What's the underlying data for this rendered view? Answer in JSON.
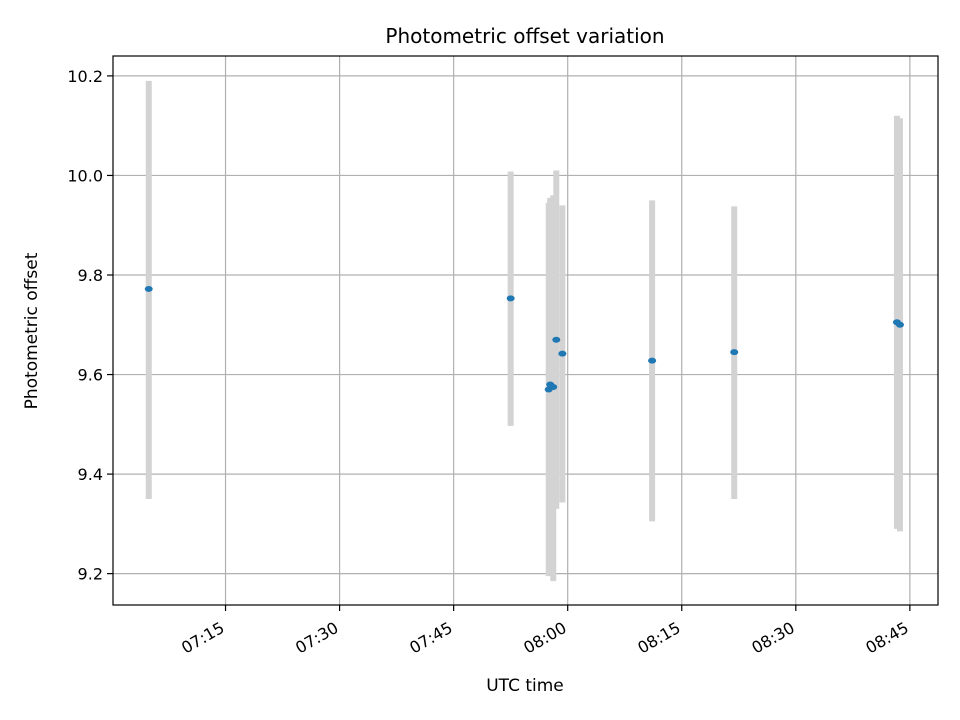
{
  "chart_data": {
    "type": "scatter",
    "title": "Photometric offset variation",
    "xlabel": "UTC time",
    "ylabel": "Photometric offset",
    "x_axis": "time",
    "x_ticks": [
      "07:15",
      "07:30",
      "07:45",
      "08:00",
      "08:15",
      "08:30",
      "08:45"
    ],
    "y_ticks": [
      9.2,
      9.4,
      9.6,
      9.8,
      10.0,
      10.2
    ],
    "xlim": [
      "07:00:12",
      "08:48:42"
    ],
    "ylim": [
      9.137,
      10.24
    ],
    "grid": true,
    "marker_color": "#1f77b4",
    "errorbar_color": "#d3d3d3",
    "points": [
      {
        "x": "07:04:54",
        "y": 9.772,
        "yerr_low": 9.35,
        "yerr_high": 10.19
      },
      {
        "x": "07:52:30",
        "y": 9.753,
        "yerr_low": 9.497,
        "yerr_high": 10.008
      },
      {
        "x": "07:57:30",
        "y": 9.57,
        "yerr_low": 9.195,
        "yerr_high": 9.945
      },
      {
        "x": "07:57:42",
        "y": 9.58,
        "yerr_low": 9.205,
        "yerr_high": 9.955
      },
      {
        "x": "07:58:06",
        "y": 9.575,
        "yerr_low": 9.185,
        "yerr_high": 9.96
      },
      {
        "x": "07:58:30",
        "y": 9.67,
        "yerr_low": 9.33,
        "yerr_high": 10.01
      },
      {
        "x": "07:59:18",
        "y": 9.642,
        "yerr_low": 9.343,
        "yerr_high": 9.94
      },
      {
        "x": "08:11:06",
        "y": 9.628,
        "yerr_low": 9.305,
        "yerr_high": 9.95
      },
      {
        "x": "08:21:54",
        "y": 9.645,
        "yerr_low": 9.35,
        "yerr_high": 9.938
      },
      {
        "x": "08:43:18",
        "y": 9.705,
        "yerr_low": 9.29,
        "yerr_high": 10.12
      },
      {
        "x": "08:43:42",
        "y": 9.7,
        "yerr_low": 9.285,
        "yerr_high": 10.115
      }
    ]
  }
}
